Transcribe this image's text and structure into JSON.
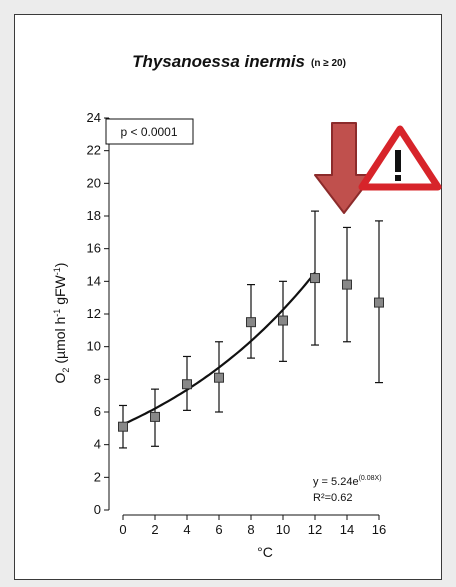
{
  "chart_data": {
    "type": "scatter",
    "title": "Thysanoessa inermis",
    "title_note": "(n ≥ 20)",
    "xlabel": "°C",
    "ylabel_parts": [
      "O",
      "2",
      " (µmol h",
      "-1",
      " gFW",
      "-1",
      ")"
    ],
    "x_ticks": [
      0,
      2,
      4,
      6,
      8,
      10,
      12,
      14,
      16
    ],
    "y_ticks": [
      0,
      2,
      4,
      6,
      8,
      10,
      12,
      14,
      16,
      18,
      20,
      22,
      24
    ],
    "xlim": [
      0,
      16
    ],
    "ylim": [
      0,
      24
    ],
    "grid": false,
    "series": [
      {
        "points": [
          {
            "x": 0,
            "y": 5.1,
            "low": 3.8,
            "high": 6.4
          },
          {
            "x": 2,
            "y": 5.7,
            "low": 3.9,
            "high": 7.4
          },
          {
            "x": 4,
            "y": 7.7,
            "low": 6.1,
            "high": 9.4
          },
          {
            "x": 6,
            "y": 8.1,
            "low": 6.0,
            "high": 10.3
          },
          {
            "x": 8,
            "y": 11.5,
            "low": 9.3,
            "high": 13.8
          },
          {
            "x": 10,
            "y": 11.6,
            "low": 9.1,
            "high": 14.0
          },
          {
            "x": 12,
            "y": 14.2,
            "low": 10.1,
            "high": 18.3
          },
          {
            "x": 14,
            "y": 13.8,
            "low": 10.3,
            "high": 17.3
          },
          {
            "x": 16,
            "y": 12.7,
            "low": 7.8,
            "high": 17.7
          }
        ]
      }
    ],
    "fit": {
      "a": 5.24,
      "b": 0.085,
      "x_range": [
        0,
        12
      ]
    },
    "annotations": {
      "pvalue": "p < 0.0001",
      "equation_prefix": "y = 5.24e",
      "equation_exp": "(0.08X)",
      "r2": "R²=0.62"
    },
    "colors": {
      "marker": "#888888",
      "arrow_fill": "#c0504d",
      "arrow_stroke": "#8c2b2b",
      "warning_border": "#d7242a",
      "fit_line": "#111111"
    },
    "icons": [
      "down-arrow-icon",
      "warning-icon"
    ]
  }
}
